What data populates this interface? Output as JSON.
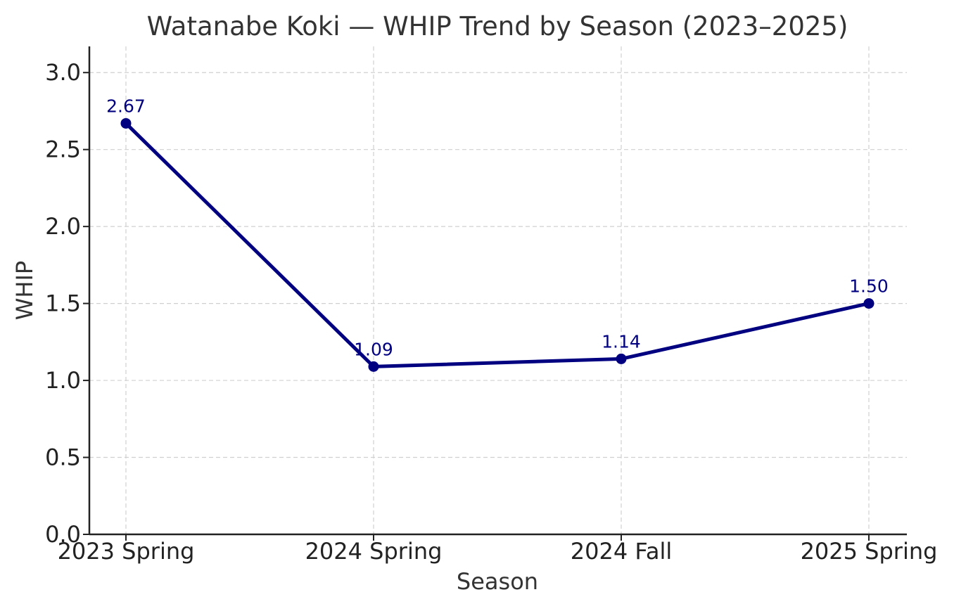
{
  "chart_data": {
    "type": "line",
    "title": "Watanabe Koki — WHIP Trend by Season (2023–2025)",
    "xlabel": "Season",
    "ylabel": "WHIP",
    "categories": [
      "2023 Spring",
      "2024 Spring",
      "2024 Fall",
      "2025 Spring"
    ],
    "series": [
      {
        "values": [
          2.67,
          1.09,
          1.14,
          1.5
        ],
        "data_labels": [
          "2.67",
          "1.09",
          "1.14",
          "1.50"
        ],
        "color": "#000080"
      }
    ],
    "ylim": [
      0,
      3.17
    ],
    "yticks": [
      0.0,
      0.5,
      1.0,
      1.5,
      2.0,
      2.5,
      3.0
    ],
    "ytick_labels": [
      "0.0",
      "0.5",
      "1.0",
      "1.5",
      "2.0",
      "2.5",
      "3.0"
    ],
    "grid": true,
    "grid_style": "dashed",
    "legend": "none"
  }
}
